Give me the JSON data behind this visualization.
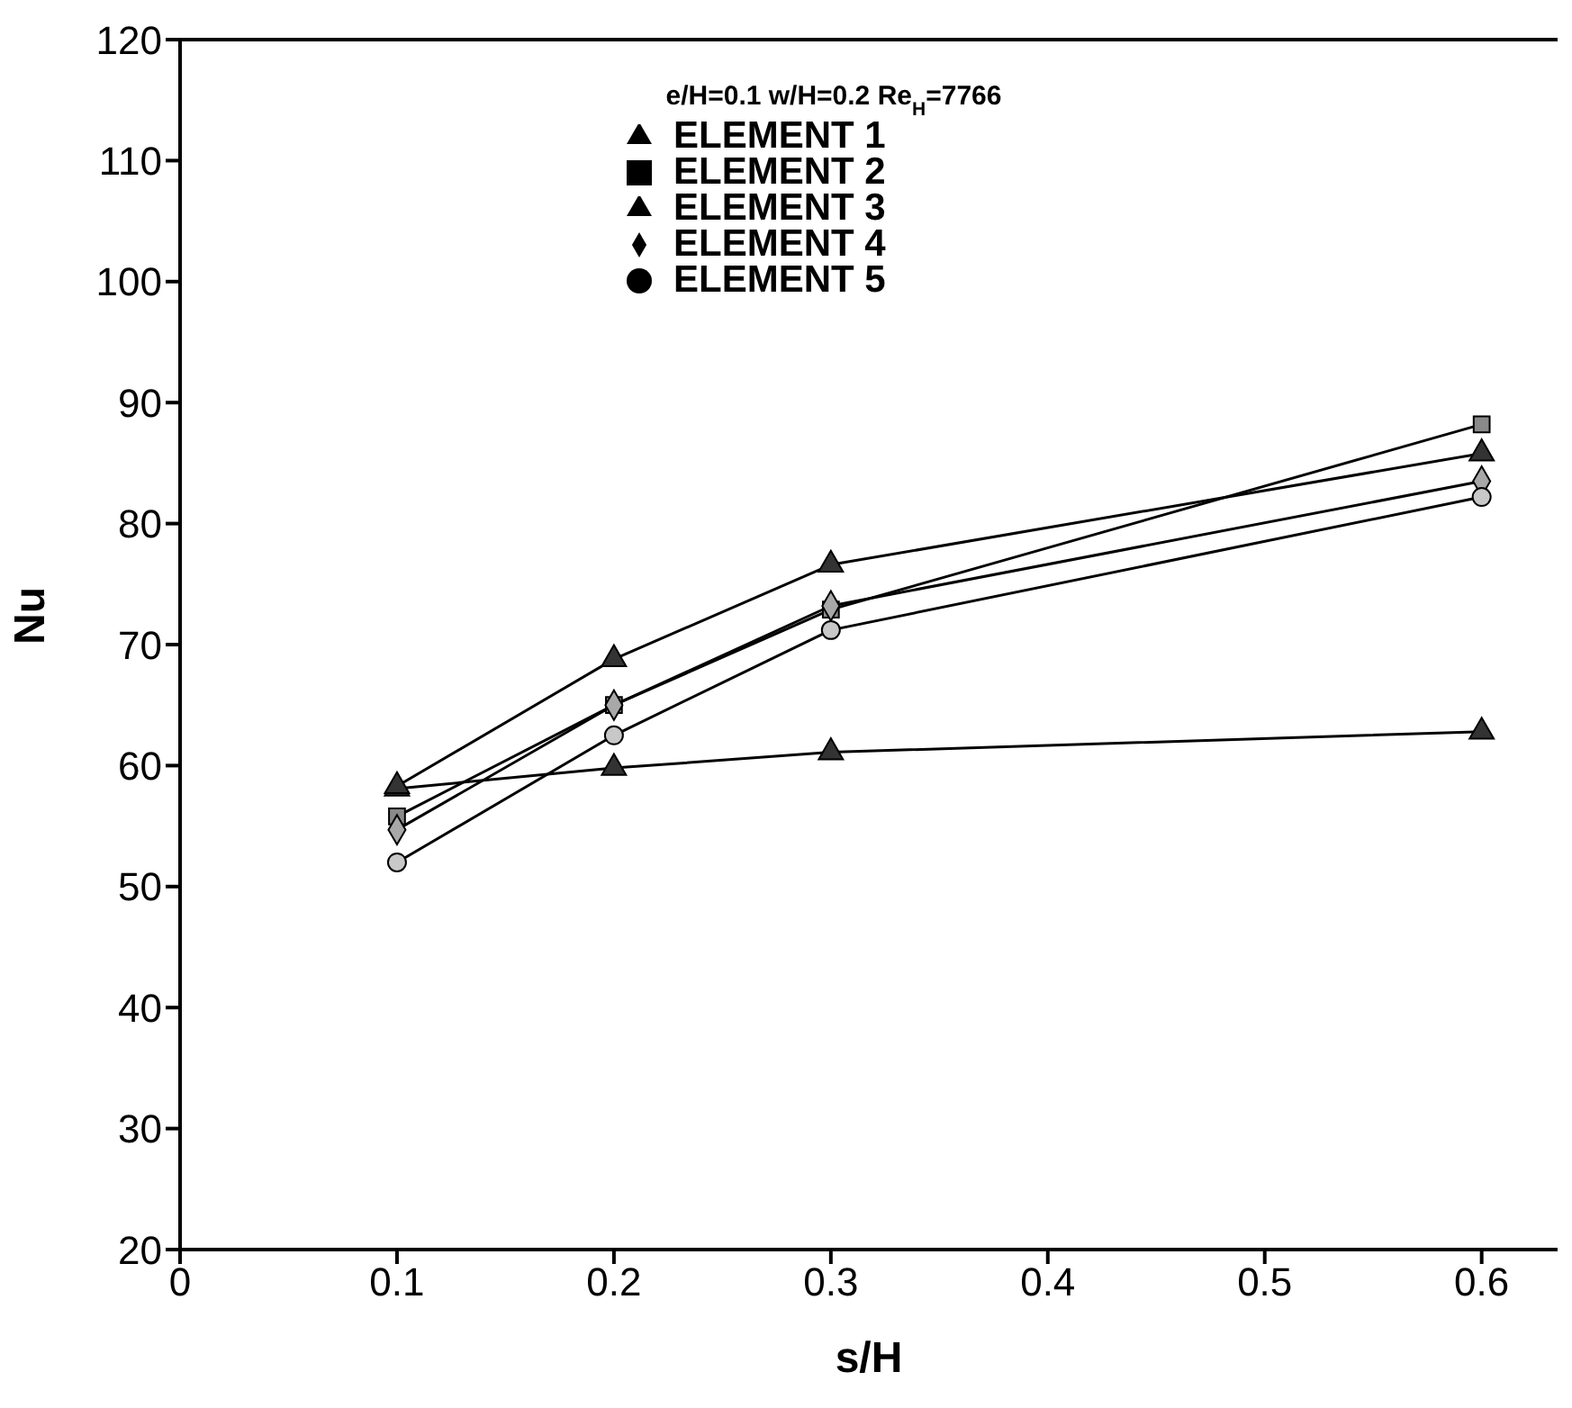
{
  "chart_data": {
    "type": "line",
    "xlabel": "s/H",
    "ylabel": "Nu",
    "legend_title": "e/H=0.1    w/H=0.2    Re$_{H}$=7766",
    "x": [
      0.1,
      0.2,
      0.3,
      0.6
    ],
    "series": [
      {
        "name": "ELEMENT 1",
        "color": "#000000",
        "marker": "triangle",
        "values": [
          58.1,
          59.8,
          61.1,
          62.8
        ]
      },
      {
        "name": "ELEMENT 2",
        "color": "#000000",
        "marker": "square",
        "values": [
          55.8,
          65.0,
          72.9,
          88.2
        ]
      },
      {
        "name": "ELEMENT 3",
        "color": "#000000",
        "marker": "triangle",
        "values": [
          58.3,
          68.8,
          76.6,
          85.8
        ]
      },
      {
        "name": "ELEMENT 4",
        "color": "#000000",
        "marker": "diamond",
        "values": [
          54.7,
          65.0,
          73.2,
          83.5
        ]
      },
      {
        "name": "ELEMENT 5",
        "color": "#000000",
        "marker": "circle",
        "values": [
          52.0,
          62.5,
          71.2,
          82.2
        ]
      }
    ],
    "xlim": [
      0,
      0.635
    ],
    "xticks": [
      0,
      0.1,
      0.2,
      0.3,
      0.4,
      0.5,
      0.6
    ],
    "ylim": [
      20,
      120
    ],
    "yticks": [
      20,
      30,
      40,
      50,
      60,
      70,
      80,
      90,
      100,
      110,
      120
    ],
    "legend": "top",
    "line_style": "solid"
  }
}
